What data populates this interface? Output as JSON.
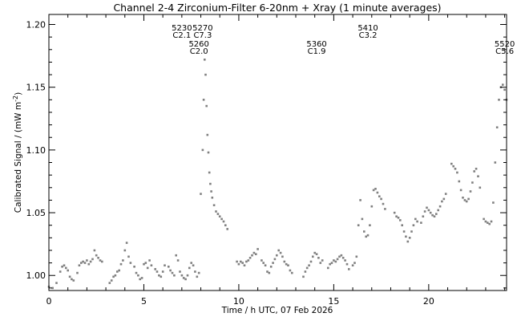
{
  "chart_data": {
    "type": "scatter",
    "title": "Channel 2-4   Zirconium-Filter   6-20nm + Xray   (1 minute averages)",
    "xlabel": "Time / h UTC, 07 Feb 2026",
    "ylabel": "Calibrated Signal / (mW m",
    "ylabel_sup": "-2",
    "ylabel_suffix": ")",
    "xlim": [
      0,
      24.1
    ],
    "ylim": [
      0.988,
      1.208
    ],
    "xticks": [
      0,
      5,
      10,
      15,
      20
    ],
    "xtick_labels": [
      "0",
      "5",
      "10",
      "15",
      "20"
    ],
    "yticks": [
      1.0,
      1.05,
      1.1,
      1.15,
      1.2
    ],
    "ytick_labels": [
      "1.00",
      "1.05",
      "1.10",
      "1.15",
      "1.20"
    ],
    "marker_color": "#808080",
    "grid": false,
    "annotations": [
      {
        "event": "5230",
        "class": "C2.1",
        "x": 7.0,
        "row": 0
      },
      {
        "event": "5270",
        "class": "C7.3",
        "x": 8.1,
        "row": 0
      },
      {
        "event": "5260",
        "class": "C2.0",
        "x": 7.9,
        "row": 1
      },
      {
        "event": "5360",
        "class": "C1.9",
        "x": 14.1,
        "row": 1
      },
      {
        "event": "5410",
        "class": "C3.2",
        "x": 16.8,
        "row": 0
      },
      {
        "event": "5520",
        "class": "C5.6",
        "x": 24.0,
        "row": 1
      }
    ],
    "series": [
      {
        "x": [
          0.0,
          0.2,
          0.4,
          0.6,
          0.7,
          0.8,
          0.9,
          1.0,
          1.1,
          1.2,
          1.3,
          1.5,
          1.6,
          1.7,
          1.8,
          1.9,
          2.0,
          2.1,
          2.2,
          2.3,
          2.4,
          2.5,
          2.6,
          2.7,
          2.8,
          3.2,
          3.3,
          3.4,
          3.5,
          3.6,
          3.7,
          3.8,
          3.9,
          4.0,
          4.1,
          4.2,
          4.3,
          4.5,
          4.6,
          4.7,
          4.8,
          4.9,
          5.0,
          5.1,
          5.2,
          5.3,
          5.4,
          5.6,
          5.7,
          5.8,
          5.9,
          6.0,
          6.1,
          6.3,
          6.4,
          6.5,
          6.6,
          6.7,
          6.8,
          6.9,
          7.0,
          7.1,
          7.2,
          7.3,
          7.4,
          7.5,
          7.6,
          7.7,
          7.8,
          7.9,
          8.0,
          8.1,
          8.15,
          8.2,
          8.25,
          8.3,
          8.35,
          8.4,
          8.45,
          8.5,
          8.55,
          8.6,
          8.7,
          8.8,
          8.9,
          9.0,
          9.1,
          9.2,
          9.3,
          9.4,
          9.9,
          10.0,
          10.1,
          10.2,
          10.3,
          10.4,
          10.5,
          10.6,
          10.7,
          10.8,
          10.9,
          11.0,
          11.2,
          11.3,
          11.4,
          11.5,
          11.6,
          11.7,
          11.8,
          11.9,
          12.0,
          12.1,
          12.2,
          12.3,
          12.4,
          12.5,
          12.6,
          12.7,
          12.8,
          13.4,
          13.5,
          13.6,
          13.7,
          13.8,
          13.9,
          14.0,
          14.1,
          14.2,
          14.3,
          14.4,
          14.7,
          14.8,
          14.9,
          15.0,
          15.1,
          15.2,
          15.3,
          15.4,
          15.5,
          15.6,
          15.7,
          15.8,
          16.0,
          16.1,
          16.2,
          16.3,
          16.4,
          16.5,
          16.6,
          16.7,
          16.8,
          16.9,
          17.0,
          17.1,
          17.2,
          17.3,
          17.4,
          17.5,
          17.6,
          17.7,
          18.2,
          18.3,
          18.4,
          18.5,
          18.6,
          18.7,
          18.8,
          18.9,
          19.0,
          19.1,
          19.2,
          19.3,
          19.4,
          19.6,
          19.7,
          19.8,
          19.9,
          20.0,
          20.1,
          20.2,
          20.3,
          20.4,
          20.5,
          20.6,
          20.7,
          20.8,
          20.9,
          21.2,
          21.3,
          21.4,
          21.5,
          21.6,
          21.7,
          21.8,
          21.9,
          22.0,
          22.1,
          22.2,
          22.3,
          22.4,
          22.5,
          22.6,
          22.7,
          22.9,
          23.0,
          23.1,
          23.2,
          23.3,
          23.4,
          23.5,
          23.6,
          23.7,
          23.8,
          23.9,
          24.0,
          24.1
        ],
        "y": [
          0.991,
          0.99,
          0.994,
          1.003,
          1.007,
          1.008,
          1.006,
          1.004,
          0.999,
          0.997,
          0.996,
          1.002,
          1.008,
          1.01,
          1.011,
          1.01,
          1.012,
          1.009,
          1.011,
          1.013,
          1.02,
          1.016,
          1.014,
          1.012,
          1.011,
          0.994,
          0.996,
          0.999,
          1.0,
          1.003,
          1.004,
          1.009,
          1.012,
          1.02,
          1.026,
          1.015,
          1.01,
          1.007,
          1.002,
          1.0,
          0.997,
          0.998,
          1.009,
          1.01,
          1.006,
          1.012,
          1.008,
          1.005,
          1.003,
          1.0,
          0.999,
          1.003,
          1.008,
          1.007,
          1.004,
          1.002,
          1.0,
          1.016,
          1.012,
          1.003,
          1.0,
          0.998,
          0.997,
          1.0,
          1.006,
          1.01,
          1.008,
          1.003,
          0.999,
          1.002,
          1.065,
          1.1,
          1.14,
          1.172,
          1.16,
          1.135,
          1.112,
          1.098,
          1.082,
          1.073,
          1.067,
          1.062,
          1.056,
          1.051,
          1.049,
          1.047,
          1.045,
          1.043,
          1.04,
          1.037,
          1.011,
          1.009,
          1.011,
          1.01,
          1.008,
          1.011,
          1.012,
          1.014,
          1.016,
          1.018,
          1.017,
          1.021,
          1.012,
          1.01,
          1.008,
          1.003,
          1.002,
          1.007,
          1.01,
          1.013,
          1.016,
          1.02,
          1.018,
          1.015,
          1.011,
          1.009,
          1.008,
          1.004,
          1.002,
          0.999,
          1.003,
          1.006,
          1.008,
          1.011,
          1.015,
          1.018,
          1.017,
          1.014,
          1.01,
          1.012,
          1.006,
          1.009,
          1.01,
          1.012,
          1.011,
          1.013,
          1.015,
          1.016,
          1.014,
          1.012,
          1.009,
          1.005,
          1.008,
          1.01,
          1.015,
          1.04,
          1.06,
          1.045,
          1.035,
          1.031,
          1.032,
          1.04,
          1.055,
          1.068,
          1.069,
          1.066,
          1.063,
          1.061,
          1.057,
          1.053,
          1.05,
          1.047,
          1.046,
          1.044,
          1.04,
          1.035,
          1.031,
          1.027,
          1.03,
          1.035,
          1.04,
          1.045,
          1.043,
          1.042,
          1.047,
          1.051,
          1.054,
          1.052,
          1.05,
          1.048,
          1.047,
          1.049,
          1.052,
          1.055,
          1.059,
          1.061,
          1.065,
          1.089,
          1.087,
          1.085,
          1.082,
          1.075,
          1.068,
          1.062,
          1.06,
          1.059,
          1.061,
          1.067,
          1.074,
          1.083,
          1.085,
          1.079,
          1.07,
          1.045,
          1.043,
          1.042,
          1.041,
          1.043,
          1.058,
          1.09,
          1.118,
          1.14,
          1.15,
          1.152,
          1.148,
          1.14
        ]
      }
    ]
  }
}
